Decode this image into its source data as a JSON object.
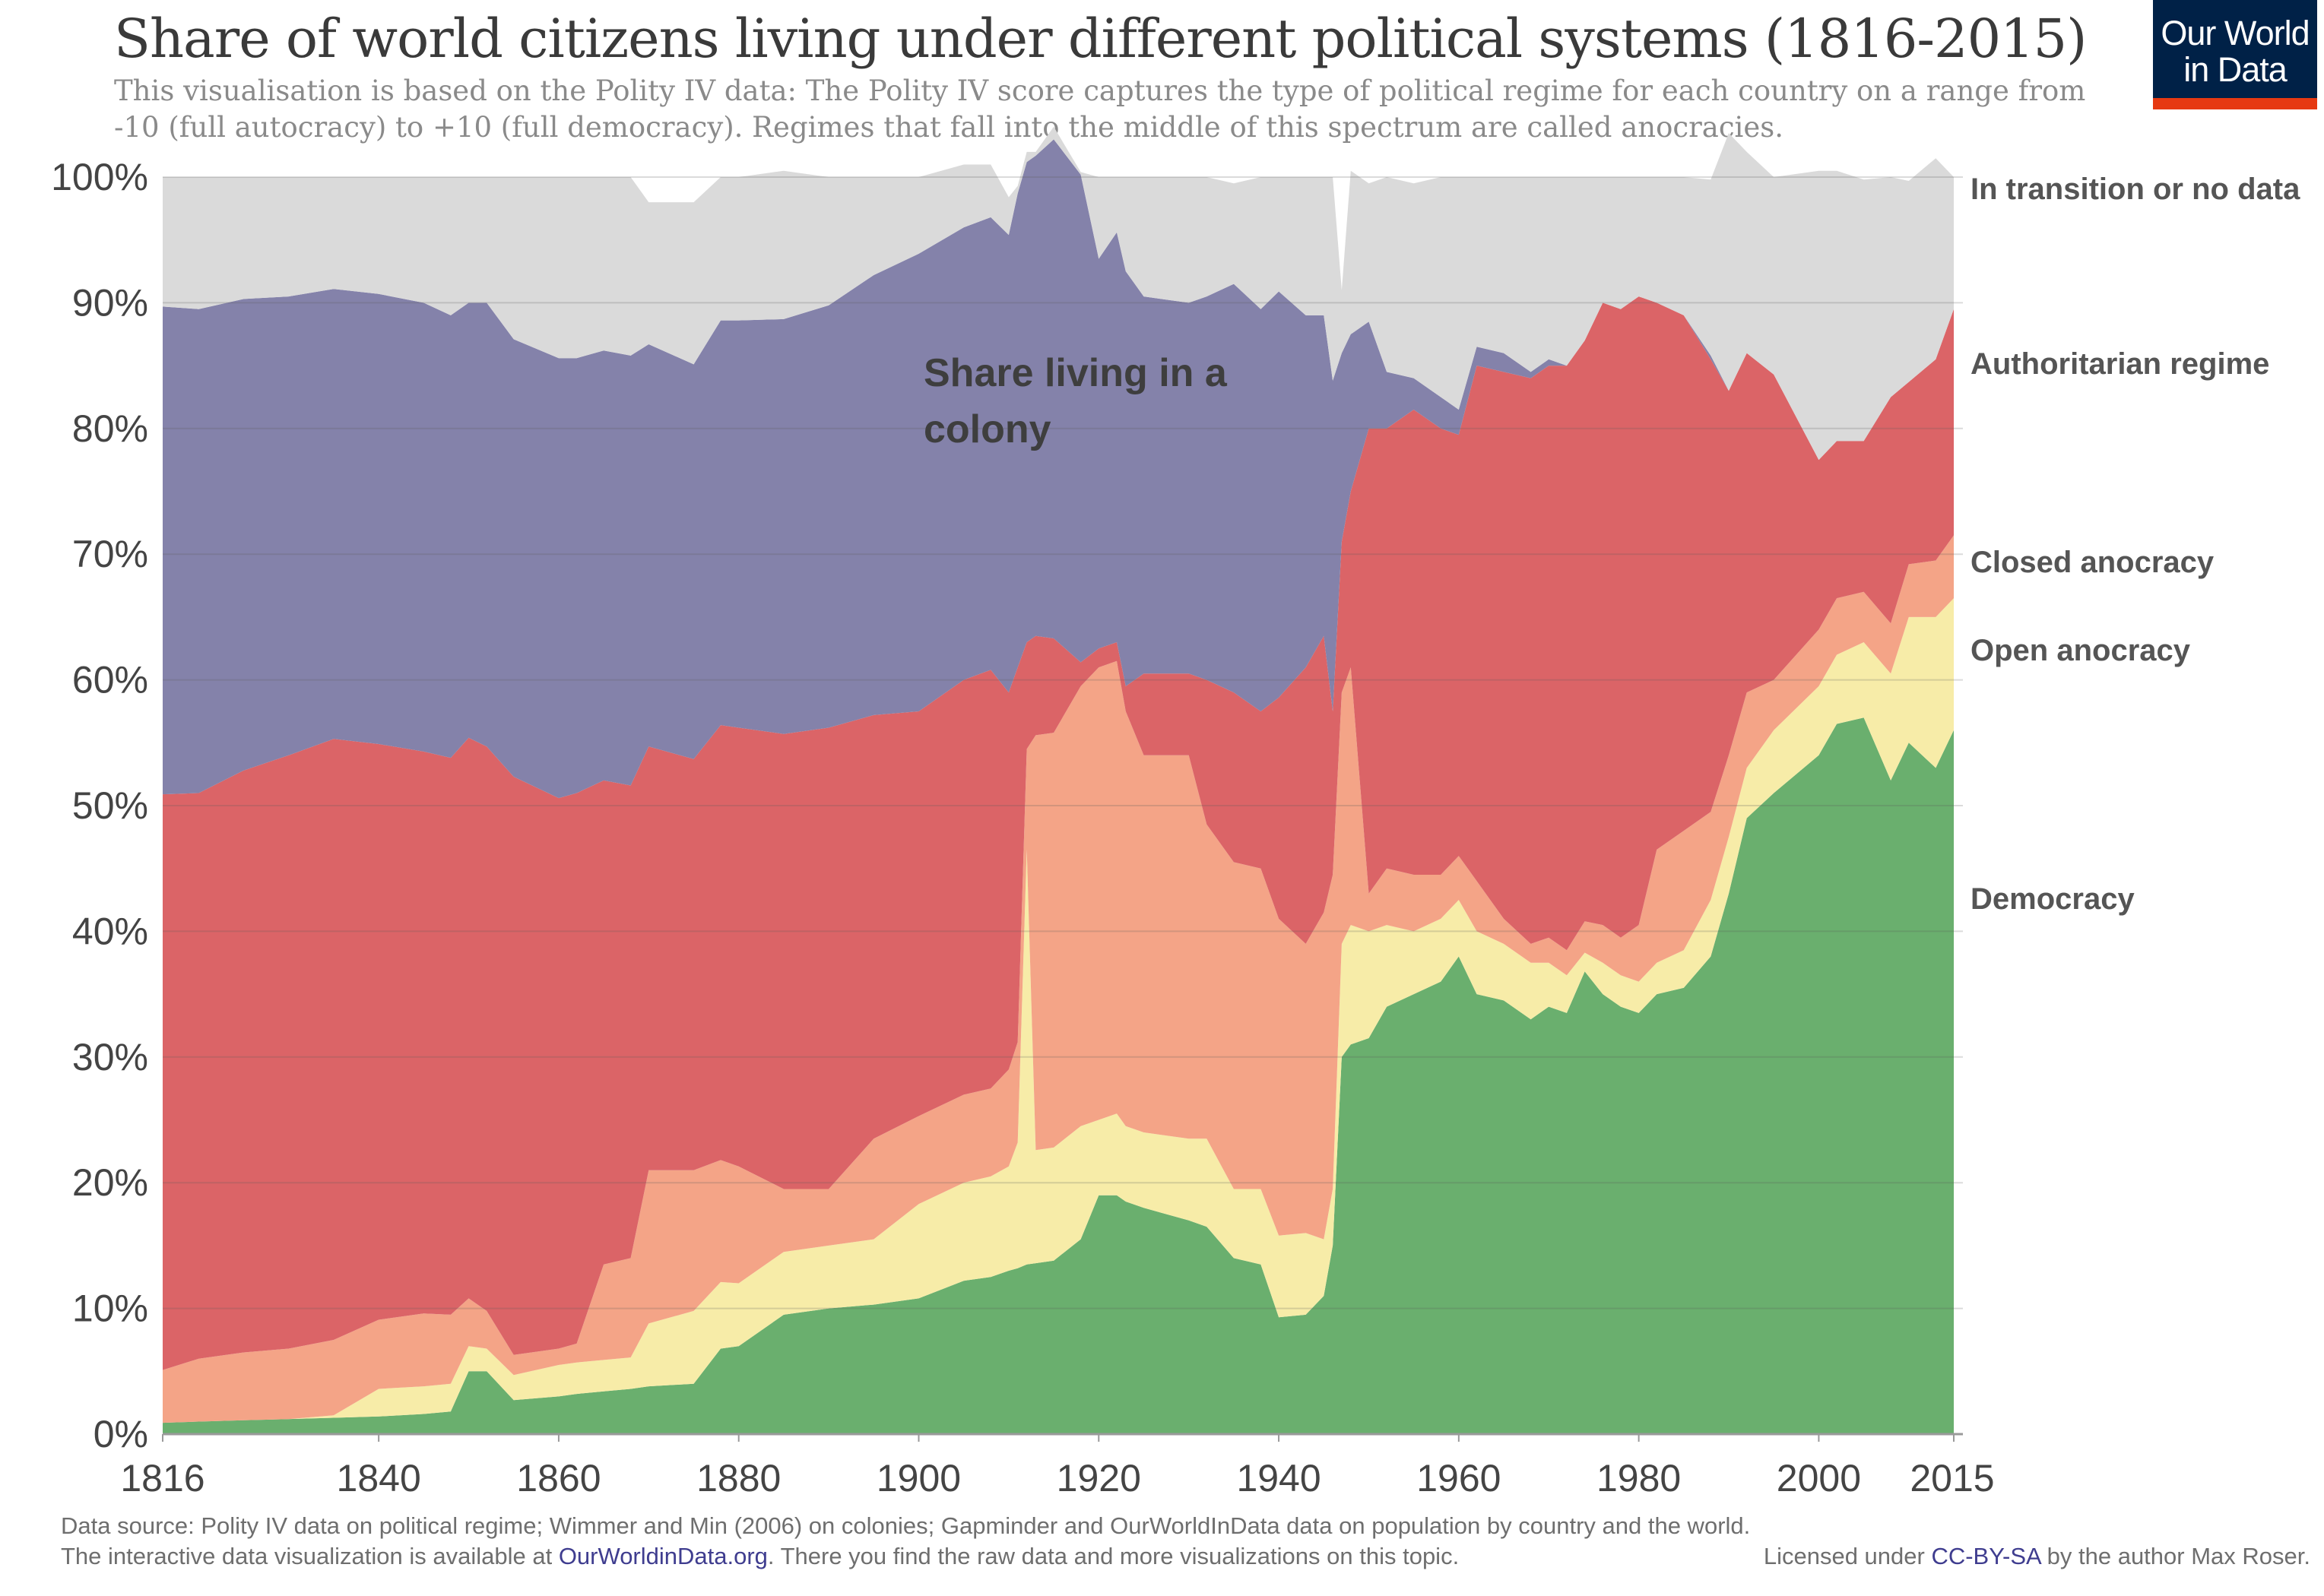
{
  "title": "Share of world citizens living under different political systems (1816-2015)",
  "subtitle": "This visualisation is based on the Polity IV data: The Polity IV score captures the type of political regime for each country on a range from -10 (full autocracy) to +10 (full democracy). Regimes that fall into the middle of this spectrum are called anocracies.",
  "logo": {
    "line1": "Our World",
    "line2": "in Data"
  },
  "footer": {
    "source": "Data source: Polity IV data on political regime; Wimmer and Min (2006) on colonies; Gapminder and OurWorldInData data on population by country and the world.",
    "interactive_prefix": "The interactive data visualization is available at ",
    "interactive_link": "OurWorldinData.org",
    "interactive_suffix": ". There you find the raw data and more visualizations on this topic.",
    "license_prefix": "Licensed under ",
    "license_link": "CC-BY-SA",
    "license_suffix": " by the author Max Roser."
  },
  "chart_data": {
    "type": "area",
    "stacked": true,
    "x_ticks": [
      1816,
      1840,
      1860,
      1880,
      1900,
      1920,
      1940,
      1960,
      1980,
      2000,
      2015
    ],
    "y_ticks": [
      "0%",
      "10%",
      "20%",
      "30%",
      "40%",
      "50%",
      "60%",
      "70%",
      "80%",
      "90%",
      "100%"
    ],
    "xlim": [
      1816,
      2015
    ],
    "ylim": [
      0,
      100
    ],
    "grid": true,
    "annotation": "Share living in a colony",
    "colors": {
      "democracy": "#6aaf6e",
      "open_anocracy": "#f7eca8",
      "closed_anocracy": "#f4a487",
      "authoritarian": "#db6467",
      "colony": "#8482aa",
      "no_data": "#dadada"
    },
    "x": [
      1816,
      1820,
      1825,
      1830,
      1835,
      1840,
      1845,
      1848,
      1850,
      1852,
      1855,
      1860,
      1862,
      1865,
      1868,
      1870,
      1875,
      1878,
      1880,
      1885,
      1890,
      1895,
      1900,
      1905,
      1908,
      1910,
      1911,
      1912,
      1913,
      1915,
      1918,
      1920,
      1922,
      1923,
      1925,
      1930,
      1932,
      1935,
      1938,
      1940,
      1943,
      1945,
      1946,
      1947,
      1948,
      1950,
      1952,
      1955,
      1958,
      1960,
      1962,
      1965,
      1968,
      1970,
      1972,
      1974,
      1976,
      1978,
      1980,
      1982,
      1985,
      1988,
      1990,
      1992,
      1995,
      2000,
      2002,
      2005,
      2008,
      2010,
      2013,
      2015
    ],
    "series": [
      {
        "name": "Democracy",
        "values": [
          0.9,
          1,
          1.1,
          1.2,
          1.3,
          1.4,
          1.6,
          1.8,
          5,
          5,
          2.7,
          3,
          3.2,
          3.4,
          3.6,
          3.8,
          4,
          6.8,
          7,
          9.5,
          10,
          10.3,
          10.8,
          12.2,
          12.5,
          13,
          13.2,
          13.5,
          13.6,
          13.8,
          15.5,
          19,
          19,
          18.5,
          18,
          17,
          16.5,
          14,
          13.5,
          9.3,
          9.5,
          11,
          15,
          30,
          31,
          31.5,
          34,
          35,
          36,
          38,
          35,
          34.5,
          33,
          34,
          33.5,
          36.8,
          35,
          34,
          33.5,
          35,
          35.5,
          38,
          43,
          49,
          51,
          54,
          56.5,
          57,
          52,
          55,
          53,
          56
        ]
      },
      {
        "name": "Open anocracy",
        "values": [
          0,
          0,
          0,
          0,
          0.2,
          2.2,
          2.2,
          2.2,
          2,
          1.8,
          2,
          2.5,
          2.5,
          2.5,
          2.5,
          5,
          5.8,
          5.3,
          5,
          5,
          5,
          5.2,
          7.5,
          7.8,
          8,
          8.3,
          10,
          33,
          9,
          9,
          9,
          6,
          6.5,
          6,
          6,
          6.5,
          7,
          5.5,
          6,
          6.5,
          6.5,
          4.5,
          4.5,
          9,
          9.5,
          8.5,
          6.5,
          5,
          5,
          4.5,
          5,
          4.5,
          4.5,
          3.5,
          3,
          1.5,
          2.5,
          2.5,
          2.5,
          2.5,
          3,
          4.5,
          4.5,
          4,
          5,
          5.5,
          5.5,
          6,
          8.5,
          10,
          12,
          10.5
        ]
      },
      {
        "name": "Closed anocracy",
        "values": [
          4.2,
          5,
          5.4,
          5.6,
          6,
          5.5,
          5.8,
          5.5,
          3.8,
          3,
          1.6,
          1.3,
          1.5,
          7.6,
          7.9,
          12.2,
          11.2,
          9.7,
          9.3,
          5,
          4.5,
          8,
          7,
          7,
          7,
          7.7,
          8,
          8,
          33,
          33,
          35,
          36,
          36,
          33,
          30,
          30.5,
          25,
          26,
          25.5,
          25.2,
          23,
          26,
          25,
          20,
          20.5,
          3,
          4.5,
          4.5,
          3.5,
          3.5,
          4,
          2,
          1.5,
          2,
          2,
          2.5,
          3,
          3,
          4.5,
          9,
          9.5,
          7,
          6.5,
          6,
          4,
          4.5,
          4.5,
          4,
          4,
          4.2,
          4.5,
          5
        ]
      },
      {
        "name": "Authoritarian regime",
        "values": [
          45.8,
          45,
          46.3,
          47.2,
          47.8,
          45.8,
          44.7,
          44.3,
          44.6,
          44.9,
          46,
          43.8,
          43.8,
          38.5,
          37.6,
          33.7,
          32.7,
          34.6,
          34.9,
          36.2,
          36.7,
          33.7,
          32.2,
          33,
          33.3,
          30,
          29.8,
          8.5,
          7.9,
          7.5,
          1.9,
          1.5,
          1.5,
          2,
          6.5,
          6.5,
          11.5,
          13.5,
          12.5,
          17.6,
          22,
          22,
          13,
          12,
          14,
          37,
          35,
          37,
          35.5,
          33.5,
          41,
          43.5,
          45,
          45.5,
          46.5,
          46.2,
          49.5,
          50,
          50,
          43.5,
          41,
          36,
          29,
          27,
          24.3,
          13.5,
          12.5,
          12,
          18,
          14.5,
          16,
          18
        ]
      },
      {
        "name": "Colony",
        "values": [
          38.8,
          38.5,
          37.5,
          36.5,
          35.8,
          35.8,
          35.7,
          35.2,
          34.6,
          35.3,
          34.8,
          35,
          34.6,
          34.2,
          34.2,
          32,
          31.4,
          32.2,
          32.4,
          33,
          33.6,
          35,
          36.4,
          36,
          36,
          36.4,
          37.7,
          38.2,
          38.2,
          39.7,
          38.8,
          31,
          32.6,
          33,
          30,
          29.5,
          30.5,
          32.5,
          32,
          32.3,
          28,
          25.5,
          26.3,
          15,
          12.5,
          8.5,
          4.5,
          2.5,
          2.5,
          2,
          1.5,
          1.5,
          0.5,
          0.5,
          0,
          0,
          0,
          0,
          0,
          0,
          0,
          0.3,
          0,
          0,
          0,
          0,
          0,
          0,
          0,
          0,
          0,
          0
        ]
      },
      {
        "name": "In transition or no data",
        "values": [
          10.3,
          10.5,
          9.7,
          9.5,
          8.9,
          9.3,
          10,
          11,
          10,
          10,
          12.9,
          14.4,
          14.4,
          13.8,
          14.2,
          11.3,
          12.9,
          11.4,
          11.4,
          11.8,
          10.2,
          7.8,
          6.1,
          5,
          4.2,
          3,
          0.6,
          0.8,
          0.3,
          1,
          0.2,
          6.5,
          4.4,
          7.5,
          9.5,
          10,
          9.5,
          8,
          10.5,
          9.1,
          11,
          11,
          16.2,
          5,
          13,
          11,
          15.5,
          15.5,
          17.5,
          18.5,
          13.5,
          14,
          15.5,
          14.5,
          15,
          13,
          10,
          10.5,
          9.5,
          10,
          11,
          14,
          20.5,
          16,
          15.7,
          23,
          21.5,
          20.8,
          17.5,
          16,
          16,
          10.5
        ]
      }
    ],
    "series_labels": [
      "In transition or no data",
      "Authoritarian regime",
      "Closed anocracy",
      "Open anocracy",
      "Democracy"
    ]
  }
}
